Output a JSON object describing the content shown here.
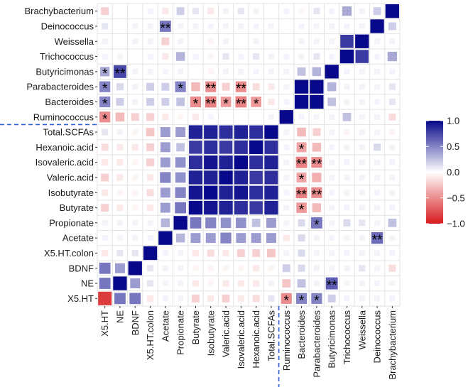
{
  "chart_data": {
    "type": "heatmap",
    "title": "",
    "xlabel": "",
    "ylabel": "",
    "x_labels": [
      "X5.HT",
      "NE",
      "BDNF",
      "X5.HT.colon",
      "Acetate",
      "Propionate",
      "Butyrate",
      "Isobutyrate",
      "Valeric.acid",
      "Isovaleric.acid",
      "Hexanoic.acid",
      "Total.SCFAs",
      "Ruminococcus",
      "Bacteroides",
      "Parabacteroides",
      "Butyricimonas",
      "Trichococcus",
      "Weissella",
      "Deinococcus",
      "Brachybacterium"
    ],
    "y_labels": [
      "Brachybacterium",
      "Deinococcus",
      "Weissella",
      "Trichococcus",
      "Butyricimonas",
      "Parabacteroides",
      "Bacteroides",
      "Ruminococcus",
      "Total.SCFAs",
      "Hexanoic.acid",
      "Isovaleric.acid",
      "Valeric.acid",
      "Isobutyrate",
      "Butyrate",
      "Propionate",
      "Acetate",
      "X5.HT.colon",
      "BDNF",
      "NE",
      "X5.HT"
    ],
    "values": [
      [
        -0.2,
        0.0,
        0.0,
        0.05,
        -0.1,
        0.2,
        0.1,
        -0.1,
        0.05,
        0.1,
        0.05,
        0.0,
        0.05,
        -0.05,
        0.1,
        0.05,
        0.35,
        0.05,
        0.2,
        1.0
      ],
      [
        0.1,
        0.0,
        0.05,
        0.05,
        0.55,
        0.05,
        0.05,
        0.05,
        0.05,
        0.05,
        0.05,
        0.05,
        0.0,
        0.05,
        0.05,
        0.05,
        0.05,
        0.05,
        1.0,
        0.2
      ],
      [
        0.05,
        0.0,
        0.05,
        0.05,
        -0.2,
        0.05,
        0.0,
        -0.05,
        0.05,
        0.0,
        0.05,
        0.0,
        0.0,
        0.05,
        0.05,
        0.05,
        0.8,
        1.0,
        0.05,
        0.05
      ],
      [
        0.05,
        0.05,
        0.0,
        0.05,
        -0.1,
        0.3,
        0.05,
        -0.05,
        0.1,
        0.05,
        0.1,
        0.05,
        0.05,
        0.05,
        0.1,
        0.05,
        1.0,
        0.8,
        0.05,
        0.35
      ],
      [
        0.35,
        0.75,
        0.05,
        0.05,
        0.05,
        0.05,
        0.0,
        -0.05,
        0.05,
        0.05,
        0.05,
        0.05,
        0.05,
        0.25,
        0.3,
        1.0,
        0.05,
        0.05,
        0.05,
        0.05
      ],
      [
        0.5,
        0.15,
        0.05,
        0.2,
        0.2,
        0.5,
        -0.3,
        -0.5,
        -0.2,
        -0.5,
        -0.15,
        -0.1,
        0.05,
        1.0,
        1.0,
        0.3,
        0.05,
        0.05,
        0.05,
        0.1
      ],
      [
        0.5,
        0.2,
        0.05,
        0.2,
        0.2,
        0.25,
        -0.5,
        -0.55,
        -0.45,
        -0.55,
        -0.45,
        -0.1,
        0.05,
        1.0,
        1.0,
        0.25,
        0.05,
        0.05,
        0.05,
        0.1
      ],
      [
        -0.5,
        -0.3,
        -0.2,
        -0.2,
        -0.1,
        -0.05,
        -0.1,
        0.05,
        0.0,
        0.0,
        0.0,
        0.05,
        1.0,
        0.05,
        0.05,
        0.05,
        0.25,
        0.05,
        0.05,
        -0.15
      ],
      [
        0.1,
        0.05,
        -0.05,
        -0.25,
        0.4,
        0.4,
        0.9,
        0.9,
        0.85,
        0.9,
        0.85,
        1.0,
        0.05,
        -0.3,
        -0.2,
        0.05,
        -0.05,
        0.05,
        0.05,
        -0.05
      ],
      [
        -0.15,
        -0.1,
        -0.1,
        -0.2,
        0.4,
        0.25,
        0.8,
        0.85,
        0.8,
        0.85,
        1.0,
        0.85,
        0.05,
        -0.4,
        -0.3,
        0.05,
        0.05,
        0.05,
        0.15,
        0.05
      ],
      [
        -0.1,
        -0.1,
        -0.05,
        -0.2,
        0.4,
        0.45,
        0.85,
        0.95,
        0.9,
        1.0,
        0.85,
        0.9,
        0.05,
        -0.55,
        -0.5,
        0.05,
        0.05,
        0.05,
        0.05,
        0.05
      ],
      [
        -0.2,
        -0.1,
        -0.05,
        -0.1,
        0.5,
        0.45,
        0.9,
        0.9,
        1.0,
        0.9,
        0.8,
        0.85,
        0.05,
        -0.4,
        -0.35,
        0.05,
        0.05,
        0.05,
        0.05,
        0.05
      ],
      [
        -0.1,
        -0.05,
        -0.05,
        -0.15,
        0.4,
        0.5,
        0.95,
        1.0,
        0.9,
        0.95,
        0.85,
        0.9,
        0.05,
        -0.55,
        -0.5,
        0.05,
        0.05,
        0.05,
        0.05,
        0.05
      ],
      [
        -0.2,
        -0.1,
        -0.05,
        -0.1,
        0.4,
        0.55,
        1.0,
        0.95,
        0.9,
        0.85,
        0.8,
        0.9,
        0.05,
        -0.45,
        -0.3,
        0.05,
        0.05,
        0.05,
        0.05,
        0.05
      ],
      [
        0.05,
        0.05,
        0.05,
        0.05,
        0.3,
        1.0,
        0.55,
        0.5,
        0.45,
        0.45,
        0.25,
        0.4,
        0.05,
        0.15,
        0.55,
        0.05,
        0.15,
        0.1,
        0.05,
        0.25
      ],
      [
        0.05,
        0.05,
        0.05,
        0.05,
        1.0,
        0.3,
        0.4,
        0.4,
        0.5,
        0.4,
        0.4,
        0.4,
        -0.1,
        0.15,
        0.05,
        0.05,
        0.05,
        0.05,
        0.6,
        0.05
      ],
      [
        -0.1,
        0.1,
        0.1,
        1.0,
        0.05,
        0.05,
        -0.1,
        -0.15,
        -0.1,
        -0.2,
        -0.2,
        -0.25,
        0.05,
        0.15,
        0.05,
        0.05,
        0.05,
        0.05,
        0.05,
        0.05
      ],
      [
        0.55,
        0.4,
        1.0,
        0.1,
        0.05,
        0.05,
        -0.05,
        -0.05,
        -0.05,
        -0.05,
        -0.1,
        -0.05,
        0.2,
        0.15,
        0.05,
        0.05,
        0.05,
        0.1,
        0.05,
        -0.15
      ],
      [
        0.55,
        1.0,
        0.4,
        0.1,
        0.05,
        0.05,
        -0.1,
        -0.05,
        -0.1,
        -0.1,
        -0.1,
        0.05,
        -0.25,
        0.25,
        0.05,
        0.65,
        0.05,
        0.05,
        0.05,
        0.05
      ],
      [
        -0.85,
        0.55,
        0.55,
        -0.1,
        0.05,
        0.05,
        -0.2,
        -0.1,
        -0.2,
        -0.1,
        -0.15,
        0.1,
        -0.5,
        0.5,
        0.5,
        0.2,
        0.05,
        0.05,
        0.05,
        0.05
      ]
    ],
    "significance": [
      [
        "",
        "",
        "",
        "",
        "",
        "",
        "",
        "",
        "",
        "",
        "",
        "",
        "",
        "",
        "",
        "",
        "",
        "",
        "",
        ""
      ],
      [
        "",
        "",
        "",
        "",
        "**",
        "",
        "",
        "",
        "",
        "",
        "",
        "",
        "",
        "",
        "",
        "",
        "",
        "",
        "",
        ""
      ],
      [
        "",
        "",
        "",
        "",
        "",
        "",
        "",
        "",
        "",
        "",
        "",
        "",
        "",
        "",
        "",
        "",
        "",
        "",
        "",
        ""
      ],
      [
        "",
        "",
        "",
        "",
        "",
        "",
        "",
        "",
        "",
        "",
        "",
        "",
        "",
        "",
        "",
        "",
        "",
        "",
        "",
        ""
      ],
      [
        "*",
        "**",
        "",
        "",
        "",
        "",
        "",
        "",
        "",
        "",
        "",
        "",
        "",
        "",
        "",
        "",
        "",
        "",
        "",
        ""
      ],
      [
        "*",
        "",
        "",
        "",
        "",
        "*",
        "",
        "**",
        "",
        "**",
        "",
        "",
        "",
        "",
        "",
        "",
        "",
        "",
        "",
        ""
      ],
      [
        "*",
        "",
        "",
        "",
        "",
        "",
        "*",
        "**",
        "*",
        "**",
        "*",
        "",
        "",
        "",
        "",
        "",
        "",
        "",
        "",
        ""
      ],
      [
        "*",
        "",
        "",
        "",
        "",
        "",
        "",
        "",
        "",
        "",
        "",
        "",
        "",
        "",
        "",
        "",
        "",
        "",
        "",
        ""
      ],
      [
        "",
        "",
        "",
        "",
        "",
        "",
        "",
        "",
        "",
        "",
        "",
        "",
        "",
        "",
        "",
        "",
        "",
        "",
        "",
        ""
      ],
      [
        "",
        "",
        "",
        "",
        "",
        "",
        "",
        "",
        "",
        "",
        "",
        "",
        "",
        "*",
        "",
        "",
        "",
        "",
        "",
        ""
      ],
      [
        "",
        "",
        "",
        "",
        "",
        "",
        "",
        "",
        "",
        "",
        "",
        "",
        "",
        "**",
        "**",
        "",
        "",
        "",
        "",
        ""
      ],
      [
        "",
        "",
        "",
        "",
        "",
        "",
        "",
        "",
        "",
        "",
        "",
        "",
        "",
        "*",
        "",
        "",
        "",
        "",
        "",
        ""
      ],
      [
        "",
        "",
        "",
        "",
        "",
        "",
        "",
        "",
        "",
        "",
        "",
        "",
        "",
        "**",
        "**",
        "",
        "",
        "",
        "",
        ""
      ],
      [
        "",
        "",
        "",
        "",
        "",
        "",
        "",
        "",
        "",
        "",
        "",
        "",
        "",
        "*",
        "",
        "",
        "",
        "",
        "",
        ""
      ],
      [
        "",
        "",
        "",
        "",
        "",
        "",
        "",
        "",
        "",
        "",
        "",
        "",
        "",
        "",
        "*",
        "",
        "",
        "",
        "",
        ""
      ],
      [
        "",
        "",
        "",
        "",
        "",
        "",
        "",
        "",
        "",
        "",
        "",
        "",
        "",
        "",
        "",
        "",
        "",
        "",
        "**",
        ""
      ],
      [
        "",
        "",
        "",
        "",
        "",
        "",
        "",
        "",
        "",
        "",
        "",
        "",
        "",
        "",
        "",
        "",
        "",
        "",
        "",
        ""
      ],
      [
        "",
        "",
        "",
        "",
        "",
        "",
        "",
        "",
        "",
        "",
        "",
        "",
        "",
        "",
        "",
        "",
        "",
        "",
        "",
        ""
      ],
      [
        "",
        "",
        "",
        "",
        "",
        "",
        "",
        "",
        "",
        "",
        "",
        "",
        "",
        "",
        "",
        "**",
        "",
        "",
        "",
        ""
      ],
      [
        "",
        "",
        "",
        "",
        "",
        "",
        "",
        "",
        "",
        "",
        "",
        "",
        "*",
        "*",
        "*",
        "",
        "",
        "",
        "",
        ""
      ]
    ],
    "colorbar": {
      "range": [
        -1,
        1
      ],
      "ticks": [
        1,
        0.5,
        0,
        -0.5,
        -1
      ],
      "tick_labels": [
        "1.0",
        "0.5",
        "0.0",
        "−0.5",
        "−1.0"
      ],
      "low_color": "#d7191c",
      "mid_color": "#ffffff",
      "high_color": "#08088a"
    },
    "separators": {
      "horizontal_after_row": "Ruminococcus",
      "vertical_after_column": "Total.SCFAs",
      "color": "#2a5fd6",
      "style": "dashed"
    }
  }
}
